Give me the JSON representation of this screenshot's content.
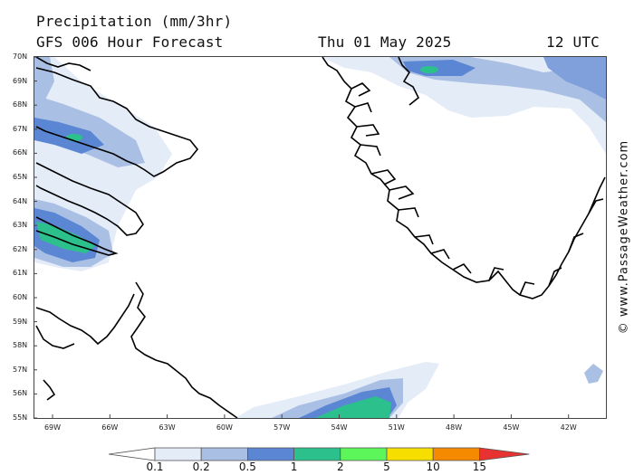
{
  "title": {
    "product": "Precipitation (mm/3hr)",
    "model": "GFS 006 Hour Forecast",
    "date": "Thu 01 May 2025",
    "time": "12 UTC"
  },
  "latitude_labels": [
    "70N",
    "69N",
    "68N",
    "67N",
    "66N",
    "65N",
    "64N",
    "63N",
    "62N",
    "61N",
    "60N",
    "59N",
    "58N",
    "57N",
    "56N",
    "55N"
  ],
  "longitude_labels": [
    "69W",
    "66W",
    "63W",
    "60W",
    "57W",
    "54W",
    "51W",
    "48W",
    "45W",
    "42W"
  ],
  "copyright": "© www.PassageWeather.com",
  "legend": {
    "ticks": [
      "0.1",
      "0.2",
      "0.5",
      "1",
      "2",
      "5",
      "10",
      "15"
    ],
    "colors": [
      "#ffffff",
      "#e4ecf8",
      "#a9bfe3",
      "#5b86d3",
      "#2cc18c",
      "#5cf65a",
      "#f6df00",
      "#f58a00",
      "#e83232"
    ]
  }
}
